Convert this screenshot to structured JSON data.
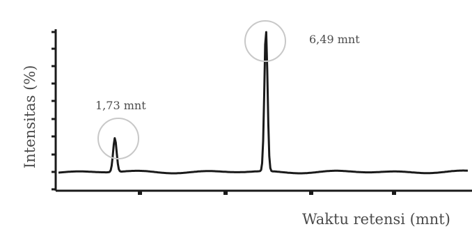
{
  "chart_data": {
    "type": "line",
    "title": "",
    "xlabel": "Waktu retensi (mnt)",
    "ylabel": "Intensitas (%)",
    "peaks": [
      {
        "label": "1,73 mnt",
        "retention_time": 1.73,
        "relative_intensity": 0.24
      },
      {
        "label": "6,49 mnt",
        "retention_time": 6.49,
        "relative_intensity": 1.0
      }
    ],
    "baseline": 0.0,
    "grid": false,
    "legend": "none",
    "line_color": "#1a1a1a",
    "annotation_circle_color": "#c8c8c8"
  }
}
